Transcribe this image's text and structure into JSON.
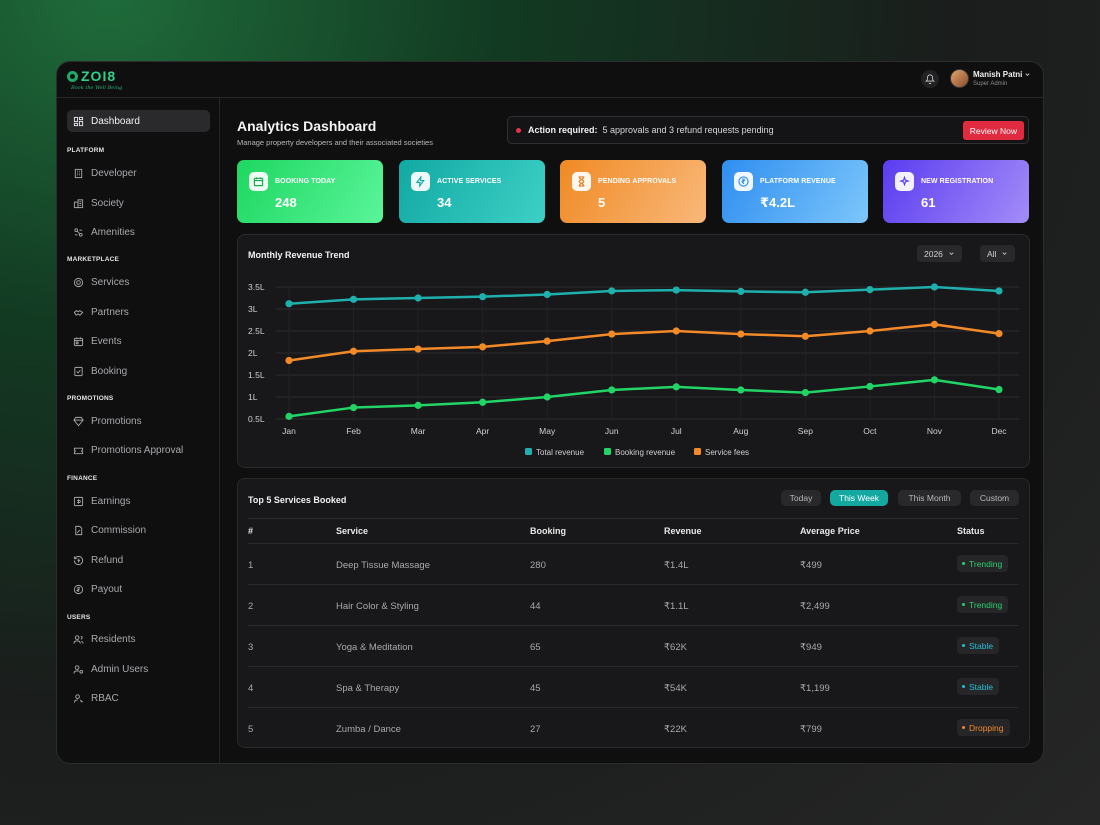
{
  "brand": {
    "name": "ZOI8",
    "tagline": "Book the Well Being"
  },
  "header": {
    "user_name": "Manish Patni",
    "user_role": "Super Admin"
  },
  "sidebar": {
    "dashboard": "Dashboard",
    "sections": [
      {
        "title": "PLATFORM",
        "items": [
          "Developer",
          "Society",
          "Amenities"
        ]
      },
      {
        "title": "MARKETPLACE",
        "items": [
          "Services",
          "Partners",
          "Events",
          "Booking"
        ]
      },
      {
        "title": "PROMOTIONS",
        "items": [
          "Promotions",
          "Promotions Approval"
        ]
      },
      {
        "title": "FINANCE",
        "items": [
          "Earnings",
          "Commission",
          "Refund",
          "Payout"
        ]
      },
      {
        "title": "USERS",
        "items": [
          "Residents",
          "Admin Users",
          "RBAC"
        ]
      }
    ]
  },
  "page": {
    "title": "Analytics Dashboard",
    "subtitle": "Manage property developers and their associated societies"
  },
  "alert": {
    "label": "Action required:",
    "message": "5 approvals and 3 refund requests pending",
    "button": "Review Now"
  },
  "stats": [
    {
      "label": "BOOKING TODAY",
      "value": "248",
      "icon": "calendar-icon"
    },
    {
      "label": "ACTIVE SERVICES",
      "value": "34",
      "icon": "lightning-icon"
    },
    {
      "label": "PENDING APPROVALS",
      "value": "5",
      "icon": "hourglass-icon"
    },
    {
      "label": "PLATFORM REVENUE",
      "value": "₹4.2L",
      "icon": "rupee-icon"
    },
    {
      "label": "NEW REGISTRATION",
      "value": "61",
      "icon": "sparkle-icon"
    }
  ],
  "revenue_chart": {
    "title": "Monthly Revenue Trend",
    "year_select": "2026",
    "filter_select": "All"
  },
  "chart_data": {
    "type": "line",
    "title": "Monthly Revenue Trend",
    "categories": [
      "Jan",
      "Feb",
      "Mar",
      "Apr",
      "May",
      "Jun",
      "Jul",
      "Aug",
      "Sep",
      "Oct",
      "Nov",
      "Dec"
    ],
    "y_ticks": [
      "3.5L",
      "3L",
      "2.5L",
      "2L",
      "1.5L",
      "1L",
      "0.5L"
    ],
    "ylim": [
      0.5,
      3.5
    ],
    "series": [
      {
        "name": "Total revenue",
        "color": "#1fb0ad",
        "values": [
          3.12,
          3.22,
          3.25,
          3.28,
          3.33,
          3.41,
          3.43,
          3.4,
          3.38,
          3.44,
          3.5,
          3.41
        ]
      },
      {
        "name": "Booking revenue",
        "color": "#22d466",
        "values": [
          0.56,
          0.76,
          0.81,
          0.88,
          1.0,
          1.16,
          1.23,
          1.16,
          1.1,
          1.24,
          1.39,
          1.17
        ]
      },
      {
        "name": "Service fees",
        "color": "#f28a28",
        "values": [
          1.83,
          2.04,
          2.09,
          2.14,
          2.27,
          2.43,
          2.5,
          2.43,
          2.38,
          2.5,
          2.65,
          2.44
        ]
      }
    ],
    "grid": true,
    "legend": "bottom-center"
  },
  "services_table": {
    "title": "Top 5 Services Booked",
    "tabs": [
      "Today",
      "This Week",
      "This Month",
      "Custom"
    ],
    "active_tab": "This Week",
    "columns": [
      "#",
      "Service",
      "Booking",
      "Revenue",
      "Average Price",
      "Status"
    ],
    "rows": [
      {
        "rank": "1",
        "service": "Deep Tissue Massage",
        "booking": "280",
        "revenue": "₹1.4L",
        "avg_price": "₹499",
        "status": "Trending",
        "status_color": "#2bd06f"
      },
      {
        "rank": "2",
        "service": "Hair Color & Styling",
        "booking": "44",
        "revenue": "₹1.1L",
        "avg_price": "₹2,499",
        "status": "Trending",
        "status_color": "#2bd06f"
      },
      {
        "rank": "3",
        "service": "Yoga & Meditation",
        "booking": "65",
        "revenue": "₹62K",
        "avg_price": "₹949",
        "status": "Stable",
        "status_color": "#22c1d6"
      },
      {
        "rank": "4",
        "service": "Spa & Therapy",
        "booking": "45",
        "revenue": "₹54K",
        "avg_price": "₹1,199",
        "status": "Stable",
        "status_color": "#22c1d6"
      },
      {
        "rank": "5",
        "service": "Zumba / Dance",
        "booking": "27",
        "revenue": "₹22K",
        "avg_price": "₹799",
        "status": "Dropping",
        "status_color": "#f28a28"
      }
    ]
  },
  "colors": {
    "accent_teal": "#13a9a1",
    "alert_red": "#e02a40"
  }
}
